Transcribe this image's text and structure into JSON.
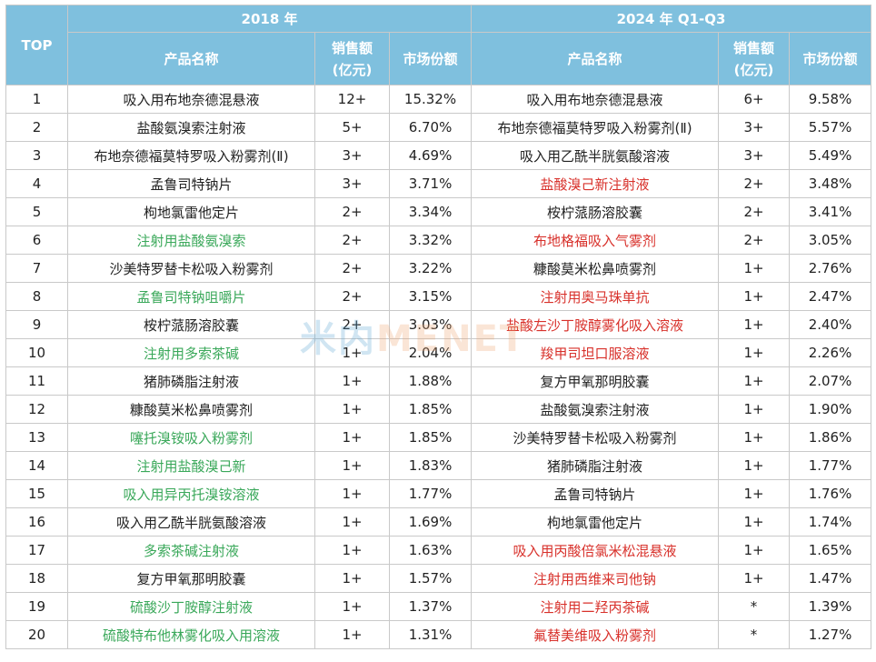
{
  "header": {
    "top_label": "TOP",
    "period_2018": "2018 年",
    "period_2024": "2024 年 Q1-Q3",
    "col_product": "产品名称",
    "col_sales_line1": "销售额",
    "col_sales_line2": "(亿元)",
    "col_share": "市场份额"
  },
  "colors": {
    "header_bg": "#7fc0de",
    "green": "#3aa85a",
    "red": "#d8312b"
  },
  "rows": [
    {
      "rank": "1",
      "p18": "吸入用布地奈德混悬液",
      "c18": "",
      "s18": "12+",
      "m18": "15.32%",
      "p24": "吸入用布地奈德混悬液",
      "c24": "",
      "s24": "6+",
      "m24": "9.58%"
    },
    {
      "rank": "2",
      "p18": "盐酸氨溴索注射液",
      "c18": "",
      "s18": "5+",
      "m18": "6.70%",
      "p24": "布地奈德福莫特罗吸入粉雾剂(Ⅱ)",
      "c24": "",
      "s24": "3+",
      "m24": "5.57%"
    },
    {
      "rank": "3",
      "p18": "布地奈德福莫特罗吸入粉雾剂(Ⅱ)",
      "c18": "",
      "s18": "3+",
      "m18": "4.69%",
      "p24": "吸入用乙酰半胱氨酸溶液",
      "c24": "",
      "s24": "3+",
      "m24": "5.49%"
    },
    {
      "rank": "4",
      "p18": "孟鲁司特钠片",
      "c18": "",
      "s18": "3+",
      "m18": "3.71%",
      "p24": "盐酸溴己新注射液",
      "c24": "red",
      "s24": "2+",
      "m24": "3.48%"
    },
    {
      "rank": "5",
      "p18": "枸地氯雷他定片",
      "c18": "",
      "s18": "2+",
      "m18": "3.34%",
      "p24": "桉柠蒎肠溶胶囊",
      "c24": "",
      "s24": "2+",
      "m24": "3.41%"
    },
    {
      "rank": "6",
      "p18": "注射用盐酸氨溴索",
      "c18": "green",
      "s18": "2+",
      "m18": "3.32%",
      "p24": "布地格福吸入气雾剂",
      "c24": "red",
      "s24": "2+",
      "m24": "3.05%"
    },
    {
      "rank": "7",
      "p18": "沙美特罗替卡松吸入粉雾剂",
      "c18": "",
      "s18": "2+",
      "m18": "3.22%",
      "p24": "糠酸莫米松鼻喷雾剂",
      "c24": "",
      "s24": "1+",
      "m24": "2.76%"
    },
    {
      "rank": "8",
      "p18": "孟鲁司特钠咀嚼片",
      "c18": "green",
      "s18": "2+",
      "m18": "3.15%",
      "p24": "注射用奥马珠单抗",
      "c24": "red",
      "s24": "1+",
      "m24": "2.47%"
    },
    {
      "rank": "9",
      "p18": "桉柠蒎肠溶胶囊",
      "c18": "",
      "s18": "2+",
      "m18": "3.03%",
      "p24": "盐酸左沙丁胺醇雾化吸入溶液",
      "c24": "red",
      "s24": "1+",
      "m24": "2.40%"
    },
    {
      "rank": "10",
      "p18": "注射用多索茶碱",
      "c18": "green",
      "s18": "1+",
      "m18": "2.04%",
      "p24": "羧甲司坦口服溶液",
      "c24": "red",
      "s24": "1+",
      "m24": "2.26%"
    },
    {
      "rank": "11",
      "p18": "猪肺磷脂注射液",
      "c18": "",
      "s18": "1+",
      "m18": "1.88%",
      "p24": "复方甲氧那明胶囊",
      "c24": "",
      "s24": "1+",
      "m24": "2.07%"
    },
    {
      "rank": "12",
      "p18": "糠酸莫米松鼻喷雾剂",
      "c18": "",
      "s18": "1+",
      "m18": "1.85%",
      "p24": "盐酸氨溴索注射液",
      "c24": "",
      "s24": "1+",
      "m24": "1.90%"
    },
    {
      "rank": "13",
      "p18": "噻托溴铵吸入粉雾剂",
      "c18": "green",
      "s18": "1+",
      "m18": "1.85%",
      "p24": "沙美特罗替卡松吸入粉雾剂",
      "c24": "",
      "s24": "1+",
      "m24": "1.86%"
    },
    {
      "rank": "14",
      "p18": "注射用盐酸溴己新",
      "c18": "green",
      "s18": "1+",
      "m18": "1.83%",
      "p24": "猪肺磷脂注射液",
      "c24": "",
      "s24": "1+",
      "m24": "1.77%"
    },
    {
      "rank": "15",
      "p18": "吸入用异丙托溴铵溶液",
      "c18": "green",
      "s18": "1+",
      "m18": "1.77%",
      "p24": "孟鲁司特钠片",
      "c24": "",
      "s24": "1+",
      "m24": "1.76%"
    },
    {
      "rank": "16",
      "p18": "吸入用乙酰半胱氨酸溶液",
      "c18": "",
      "s18": "1+",
      "m18": "1.69%",
      "p24": "枸地氯雷他定片",
      "c24": "",
      "s24": "1+",
      "m24": "1.74%"
    },
    {
      "rank": "17",
      "p18": "多索茶碱注射液",
      "c18": "green",
      "s18": "1+",
      "m18": "1.63%",
      "p24": "吸入用丙酸倍氯米松混悬液",
      "c24": "red",
      "s24": "1+",
      "m24": "1.65%"
    },
    {
      "rank": "18",
      "p18": "复方甲氧那明胶囊",
      "c18": "",
      "s18": "1+",
      "m18": "1.57%",
      "p24": "注射用西维来司他钠",
      "c24": "red",
      "s24": "1+",
      "m24": "1.47%"
    },
    {
      "rank": "19",
      "p18": "硫酸沙丁胺醇注射液",
      "c18": "green",
      "s18": "1+",
      "m18": "1.37%",
      "p24": "注射用二羟丙茶碱",
      "c24": "red",
      "s24": "*",
      "m24": "1.39%"
    },
    {
      "rank": "20",
      "p18": "硫酸特布他林雾化吸入用溶液",
      "c18": "green",
      "s18": "1+",
      "m18": "1.31%",
      "p24": "氟替美维吸入粉雾剂",
      "c24": "red",
      "s24": "*",
      "m24": "1.27%"
    }
  ],
  "watermark": {
    "part1": "米内",
    "part2": "MENET"
  }
}
